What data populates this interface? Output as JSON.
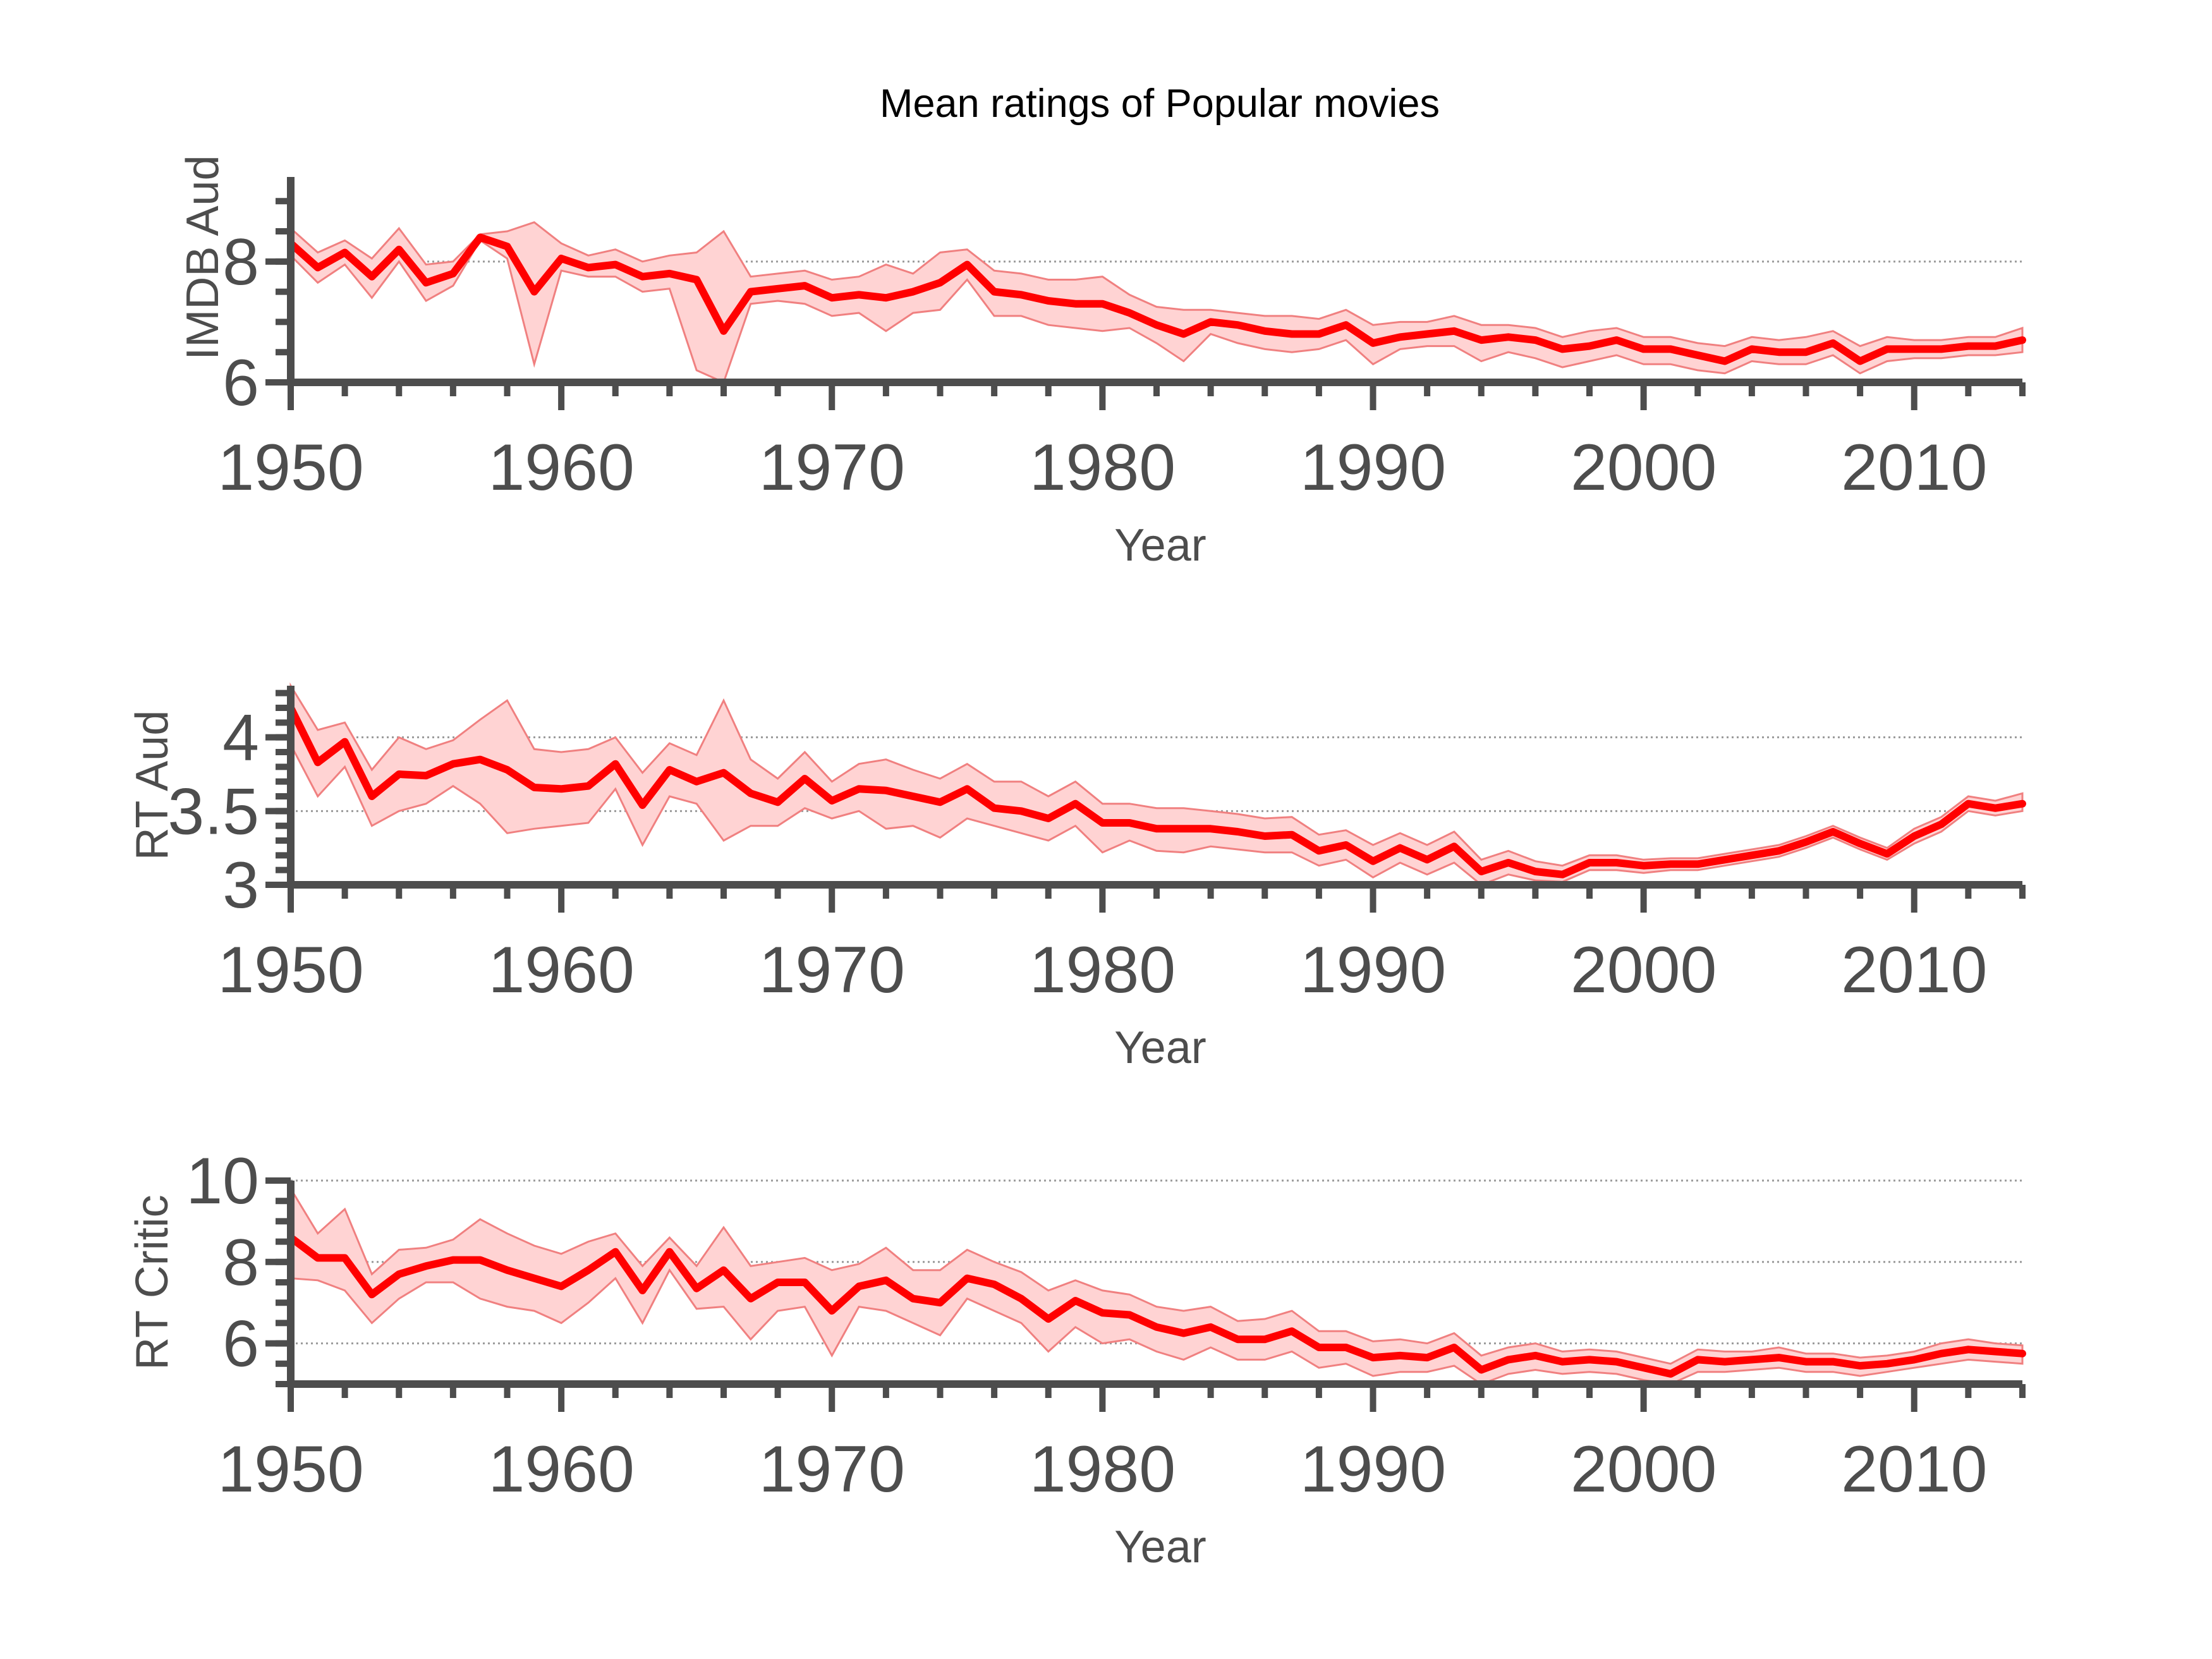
{
  "title": "Mean ratings of Popular movies",
  "colors": {
    "line": "#ff0000",
    "band_fill": "#ffd3d3",
    "band_edge": "#f08080",
    "axis": "#4d4d4d",
    "grid": "#9a9a9a"
  },
  "chart_data": [
    {
      "type": "line",
      "ylabel": "IMDB Aud",
      "xlabel": "Year",
      "xlim": [
        1950,
        2014
      ],
      "ylim": [
        6,
        9.4
      ],
      "xticks": [
        1950,
        1960,
        1970,
        1980,
        1990,
        2000,
        2010
      ],
      "yticks": [
        6,
        8
      ],
      "grid_y": [
        6,
        8
      ],
      "x": [
        1950,
        1951,
        1952,
        1953,
        1954,
        1955,
        1956,
        1957,
        1958,
        1959,
        1960,
        1961,
        1962,
        1963,
        1964,
        1965,
        1966,
        1967,
        1968,
        1969,
        1970,
        1971,
        1972,
        1973,
        1974,
        1975,
        1976,
        1977,
        1978,
        1979,
        1980,
        1981,
        1982,
        1983,
        1984,
        1985,
        1986,
        1987,
        1988,
        1989,
        1990,
        1991,
        1992,
        1993,
        1994,
        1995,
        1996,
        1997,
        1998,
        1999,
        2000,
        2001,
        2002,
        2003,
        2004,
        2005,
        2006,
        2007,
        2008,
        2009,
        2010,
        2011,
        2012,
        2013,
        2014
      ],
      "mean": [
        8.3,
        7.9,
        8.15,
        7.75,
        8.2,
        7.65,
        7.8,
        8.4,
        8.25,
        7.5,
        8.05,
        7.9,
        7.95,
        7.75,
        7.8,
        7.7,
        6.85,
        7.5,
        7.55,
        7.6,
        7.4,
        7.45,
        7.4,
        7.5,
        7.65,
        7.95,
        7.5,
        7.45,
        7.35,
        7.3,
        7.3,
        7.15,
        6.95,
        6.8,
        7.0,
        6.95,
        6.85,
        6.8,
        6.8,
        6.95,
        6.65,
        6.75,
        6.8,
        6.85,
        6.7,
        6.75,
        6.7,
        6.55,
        6.6,
        6.7,
        6.55,
        6.55,
        6.45,
        6.35,
        6.55,
        6.5,
        6.5,
        6.65,
        6.35,
        6.55,
        6.55,
        6.55,
        6.6,
        6.6,
        6.7
      ],
      "lower": [
        8.1,
        7.65,
        7.95,
        7.4,
        8.0,
        7.35,
        7.6,
        8.35,
        8.05,
        6.3,
        7.85,
        7.75,
        7.75,
        7.5,
        7.55,
        6.2,
        6.0,
        7.3,
        7.35,
        7.3,
        7.1,
        7.15,
        6.85,
        7.15,
        7.2,
        7.7,
        7.1,
        7.1,
        6.95,
        6.9,
        6.85,
        6.9,
        6.65,
        6.35,
        6.8,
        6.65,
        6.55,
        6.5,
        6.55,
        6.7,
        6.3,
        6.55,
        6.6,
        6.6,
        6.35,
        6.5,
        6.4,
        6.25,
        6.35,
        6.45,
        6.3,
        6.3,
        6.2,
        6.15,
        6.35,
        6.3,
        6.3,
        6.45,
        6.15,
        6.35,
        6.4,
        6.4,
        6.45,
        6.45,
        6.5
      ],
      "upper": [
        8.55,
        8.15,
        8.35,
        8.05,
        8.55,
        7.95,
        8.0,
        8.45,
        8.5,
        8.65,
        8.3,
        8.1,
        8.2,
        8.0,
        8.1,
        8.15,
        8.5,
        7.75,
        7.8,
        7.85,
        7.7,
        7.75,
        7.95,
        7.8,
        8.15,
        8.2,
        7.85,
        7.8,
        7.7,
        7.7,
        7.75,
        7.45,
        7.25,
        7.2,
        7.2,
        7.15,
        7.1,
        7.1,
        7.05,
        7.2,
        6.95,
        7.0,
        7.0,
        7.1,
        6.95,
        6.95,
        6.9,
        6.75,
        6.85,
        6.9,
        6.75,
        6.75,
        6.65,
        6.6,
        6.75,
        6.7,
        6.75,
        6.85,
        6.6,
        6.75,
        6.7,
        6.7,
        6.75,
        6.75,
        6.9
      ]
    },
    {
      "type": "line",
      "ylabel": "RT Aud",
      "xlabel": "Year",
      "xlim": [
        1950,
        2014
      ],
      "ylim": [
        3,
        4.35
      ],
      "xticks": [
        1950,
        1960,
        1970,
        1980,
        1990,
        2000,
        2010
      ],
      "yticks": [
        3,
        3.5,
        4
      ],
      "grid_y": [
        3.5,
        4
      ],
      "x": [
        1950,
        1951,
        1952,
        1953,
        1954,
        1955,
        1956,
        1957,
        1958,
        1959,
        1960,
        1961,
        1962,
        1963,
        1964,
        1965,
        1966,
        1967,
        1968,
        1969,
        1970,
        1971,
        1972,
        1973,
        1974,
        1975,
        1976,
        1977,
        1978,
        1979,
        1980,
        1981,
        1982,
        1983,
        1984,
        1985,
        1986,
        1987,
        1988,
        1989,
        1990,
        1991,
        1992,
        1993,
        1994,
        1995,
        1996,
        1997,
        1998,
        1999,
        2000,
        2001,
        2002,
        2003,
        2004,
        2005,
        2006,
        2007,
        2008,
        2009,
        2010,
        2011,
        2012,
        2013,
        2014
      ],
      "mean": [
        4.2,
        3.83,
        3.97,
        3.6,
        3.75,
        3.74,
        3.82,
        3.85,
        3.78,
        3.66,
        3.65,
        3.67,
        3.82,
        3.54,
        3.78,
        3.7,
        3.76,
        3.62,
        3.56,
        3.72,
        3.57,
        3.65,
        3.64,
        3.6,
        3.56,
        3.65,
        3.52,
        3.5,
        3.45,
        3.55,
        3.42,
        3.42,
        3.38,
        3.38,
        3.38,
        3.36,
        3.33,
        3.34,
        3.23,
        3.27,
        3.16,
        3.25,
        3.17,
        3.26,
        3.09,
        3.15,
        3.09,
        3.07,
        3.15,
        3.15,
        3.13,
        3.14,
        3.14,
        3.17,
        3.2,
        3.23,
        3.29,
        3.36,
        3.28,
        3.21,
        3.33,
        3.41,
        3.55,
        3.52,
        3.55
      ],
      "lower": [
        3.95,
        3.6,
        3.8,
        3.4,
        3.5,
        3.55,
        3.67,
        3.55,
        3.35,
        3.38,
        3.4,
        3.42,
        3.65,
        3.27,
        3.6,
        3.55,
        3.3,
        3.4,
        3.4,
        3.52,
        3.45,
        3.5,
        3.38,
        3.4,
        3.32,
        3.45,
        3.4,
        3.35,
        3.3,
        3.4,
        3.22,
        3.3,
        3.23,
        3.22,
        3.26,
        3.24,
        3.22,
        3.22,
        3.13,
        3.17,
        3.05,
        3.15,
        3.07,
        3.15,
        3.0,
        3.07,
        3.03,
        3.02,
        3.1,
        3.1,
        3.08,
        3.1,
        3.1,
        3.13,
        3.16,
        3.19,
        3.25,
        3.32,
        3.24,
        3.17,
        3.28,
        3.36,
        3.5,
        3.47,
        3.5
      ],
      "upper": [
        4.35,
        4.05,
        4.1,
        3.78,
        4.0,
        3.92,
        3.98,
        4.12,
        4.25,
        3.92,
        3.9,
        3.92,
        4.0,
        3.76,
        3.96,
        3.88,
        4.25,
        3.85,
        3.72,
        3.9,
        3.7,
        3.82,
        3.85,
        3.78,
        3.72,
        3.82,
        3.7,
        3.7,
        3.6,
        3.7,
        3.55,
        3.55,
        3.52,
        3.52,
        3.5,
        3.48,
        3.45,
        3.46,
        3.34,
        3.37,
        3.27,
        3.35,
        3.27,
        3.36,
        3.17,
        3.23,
        3.16,
        3.13,
        3.2,
        3.2,
        3.17,
        3.18,
        3.18,
        3.21,
        3.24,
        3.27,
        3.33,
        3.4,
        3.32,
        3.25,
        3.38,
        3.46,
        3.6,
        3.57,
        3.62
      ]
    },
    {
      "type": "line",
      "ylabel": "RT Critic",
      "xlabel": "Year",
      "xlim": [
        1950,
        2014
      ],
      "ylim": [
        5,
        10
      ],
      "xticks": [
        1950,
        1960,
        1970,
        1980,
        1990,
        2000,
        2010
      ],
      "yticks": [
        6,
        8,
        10
      ],
      "grid_y": [
        6,
        8,
        10
      ],
      "x": [
        1950,
        1951,
        1952,
        1953,
        1954,
        1955,
        1956,
        1957,
        1958,
        1959,
        1960,
        1961,
        1962,
        1963,
        1964,
        1965,
        1966,
        1967,
        1968,
        1969,
        1970,
        1971,
        1972,
        1973,
        1974,
        1975,
        1976,
        1977,
        1978,
        1979,
        1980,
        1981,
        1982,
        1983,
        1984,
        1985,
        1986,
        1987,
        1988,
        1989,
        1990,
        1991,
        1992,
        1993,
        1994,
        1995,
        1996,
        1997,
        1998,
        1999,
        2000,
        2001,
        2002,
        2003,
        2004,
        2005,
        2006,
        2007,
        2008,
        2009,
        2010,
        2011,
        2012,
        2013,
        2014
      ],
      "mean": [
        8.6,
        8.1,
        8.1,
        7.2,
        7.7,
        7.9,
        8.05,
        8.05,
        7.8,
        7.6,
        7.4,
        7.8,
        8.25,
        7.3,
        8.25,
        7.35,
        7.8,
        7.1,
        7.5,
        7.5,
        6.8,
        7.4,
        7.55,
        7.1,
        7.0,
        7.6,
        7.45,
        7.1,
        6.6,
        7.05,
        6.75,
        6.7,
        6.4,
        6.25,
        6.4,
        6.1,
        6.1,
        6.3,
        5.9,
        5.9,
        5.65,
        5.7,
        5.65,
        5.9,
        5.35,
        5.6,
        5.7,
        5.55,
        5.6,
        5.55,
        5.4,
        5.25,
        5.6,
        5.55,
        5.6,
        5.65,
        5.55,
        5.55,
        5.45,
        5.5,
        5.6,
        5.75,
        5.85,
        5.8,
        5.75
      ],
      "lower": [
        7.6,
        7.55,
        7.3,
        6.5,
        7.1,
        7.5,
        7.5,
        7.1,
        6.9,
        6.8,
        6.5,
        7.0,
        7.6,
        6.5,
        7.8,
        6.85,
        6.9,
        6.1,
        6.8,
        6.9,
        5.7,
        6.9,
        6.8,
        6.5,
        6.2,
        7.1,
        6.8,
        6.5,
        5.8,
        6.4,
        6.0,
        6.1,
        5.8,
        5.6,
        5.9,
        5.6,
        5.6,
        5.8,
        5.4,
        5.5,
        5.2,
        5.3,
        5.3,
        5.45,
        5.0,
        5.25,
        5.35,
        5.25,
        5.3,
        5.25,
        5.1,
        5.0,
        5.3,
        5.3,
        5.35,
        5.4,
        5.3,
        5.3,
        5.2,
        5.3,
        5.4,
        5.5,
        5.6,
        5.55,
        5.5
      ],
      "upper": [
        9.8,
        8.7,
        9.3,
        7.7,
        8.3,
        8.35,
        8.55,
        9.05,
        8.7,
        8.4,
        8.2,
        8.5,
        8.7,
        7.9,
        8.6,
        7.9,
        8.85,
        7.9,
        8.0,
        8.1,
        7.8,
        7.95,
        8.35,
        7.8,
        7.8,
        8.3,
        8.0,
        7.75,
        7.3,
        7.55,
        7.3,
        7.2,
        6.9,
        6.8,
        6.9,
        6.55,
        6.6,
        6.8,
        6.3,
        6.3,
        6.05,
        6.1,
        6.0,
        6.25,
        5.7,
        5.9,
        6.0,
        5.8,
        5.85,
        5.8,
        5.65,
        5.5,
        5.85,
        5.8,
        5.8,
        5.9,
        5.75,
        5.75,
        5.65,
        5.7,
        5.8,
        6.0,
        6.1,
        6.0,
        5.95
      ]
    }
  ]
}
